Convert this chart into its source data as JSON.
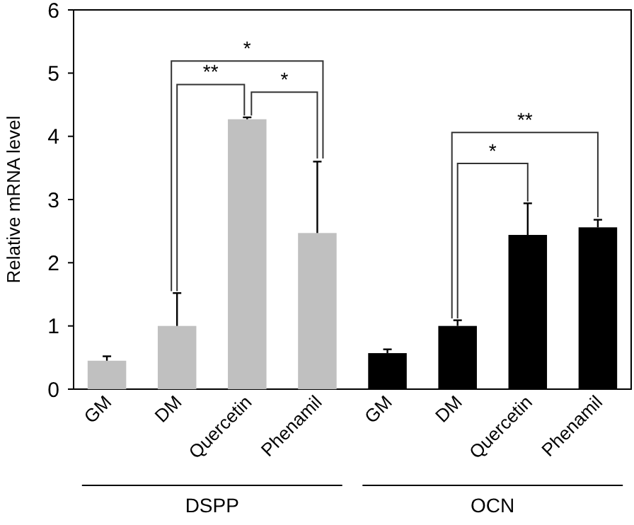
{
  "chart_data": {
    "type": "bar",
    "ylabel": "Relative mRNA level",
    "categories": [
      "GM",
      "DM",
      "Quercetin",
      "Phenamil",
      "GM",
      "DM",
      "Quercetin",
      "Phenamil"
    ],
    "values": [
      0.45,
      1.0,
      4.27,
      2.47,
      0.57,
      1.0,
      2.44,
      2.56
    ],
    "colors": [
      "#c0c0c0",
      "#c0c0c0",
      "#c0c0c0",
      "#c0c0c0",
      "#000000",
      "#000000",
      "#000000",
      "#000000"
    ],
    "errors": [
      [
        0.45,
        0.52
      ],
      [
        1.0,
        1.52
      ],
      [
        4.27,
        4.3
      ],
      [
        2.47,
        3.6
      ],
      [
        0.57,
        0.63
      ],
      [
        1.0,
        1.09
      ],
      [
        2.44,
        2.94
      ],
      [
        2.56,
        2.68
      ]
    ],
    "ylim": [
      0,
      6
    ],
    "yticks": [
      0,
      1,
      2,
      3,
      4,
      5,
      6
    ],
    "grid": false,
    "annotations": [
      "**",
      "*",
      "*",
      "*",
      "**",
      "DSPP",
      "OCN"
    ]
  }
}
